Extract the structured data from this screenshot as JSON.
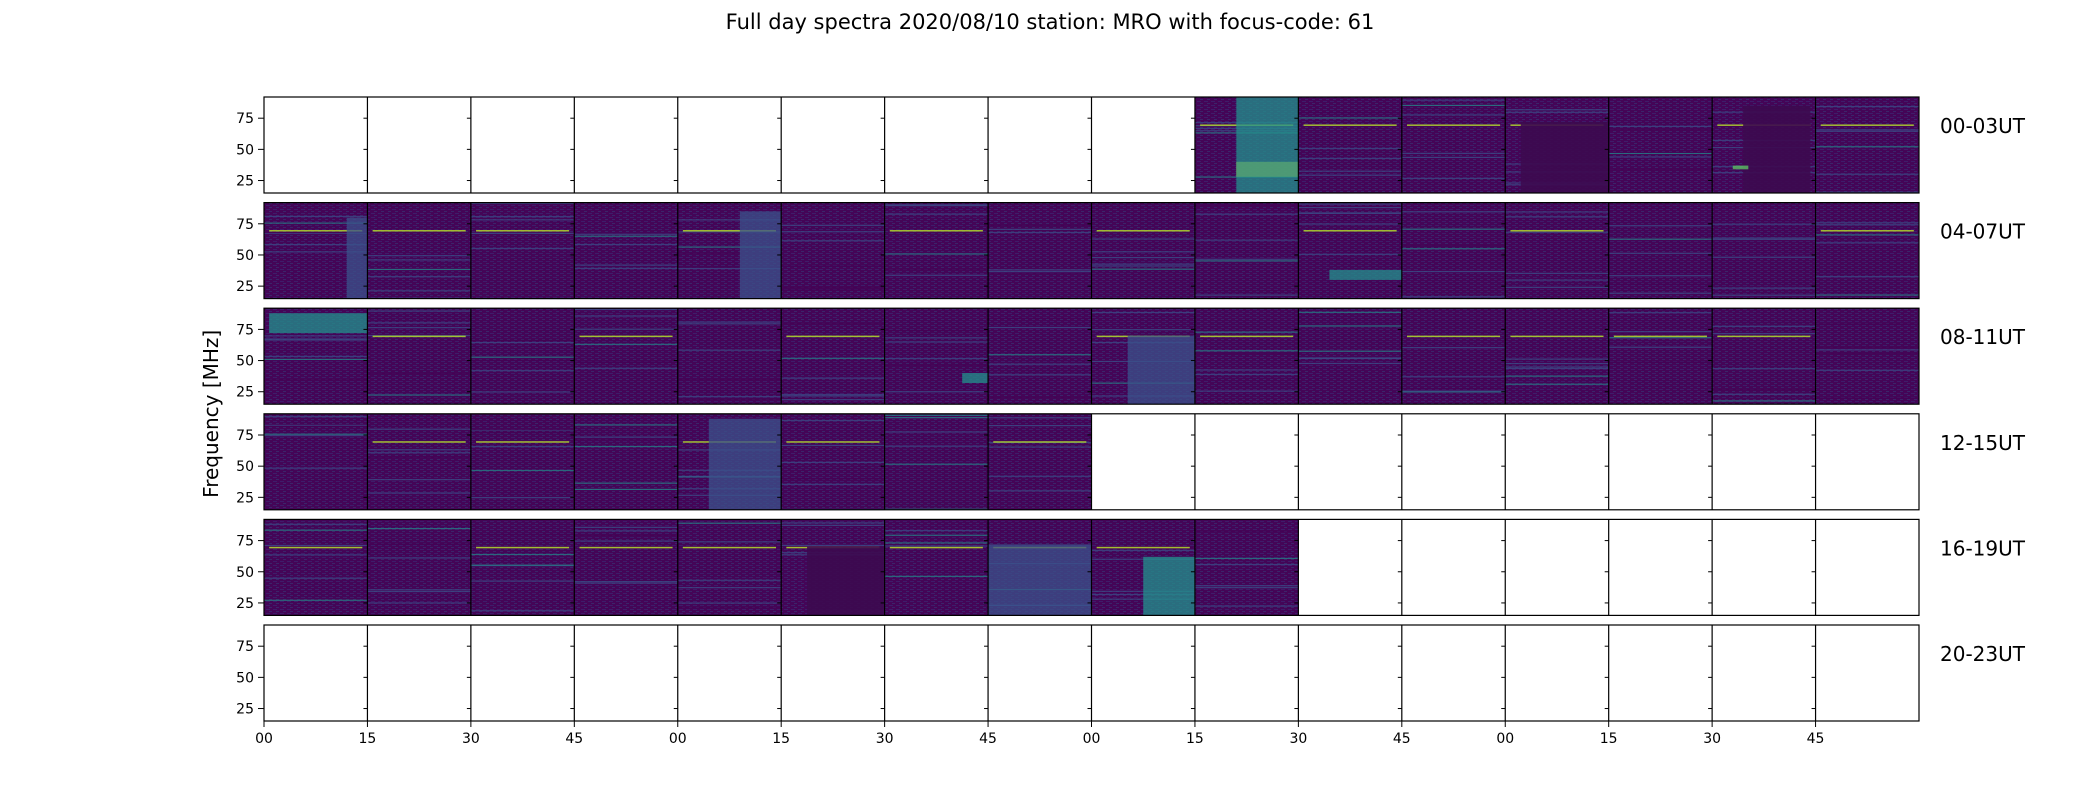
{
  "chart_data": {
    "type": "heatmap",
    "title": "Full day spectra 2020/08/10 station: MRO with focus-code: 61",
    "xlabel": "",
    "ylabel": "Frequency [MHz]",
    "ylim": [
      15,
      92
    ],
    "y_ticks": [
      25,
      50,
      75
    ],
    "x_tick_labels": [
      "00",
      "15",
      "30",
      "45",
      "00",
      "15",
      "30",
      "45",
      "00",
      "15",
      "30",
      "45",
      "00",
      "15",
      "30",
      "45"
    ],
    "row_labels": [
      "00-03UT",
      "04-07UT",
      "08-11UT",
      "12-15UT",
      "16-19UT",
      "20-23UT"
    ],
    "panels_per_row": 16,
    "panel_duration_minutes": 15,
    "colormap": [
      "#440154",
      "#3b528b",
      "#21918c",
      "#5ec962",
      "#fde725"
    ],
    "rows": [
      {
        "label": "00-03UT",
        "panels": [
          0,
          0,
          0,
          0,
          0,
          0,
          0,
          0,
          0,
          1,
          1,
          1,
          1,
          1,
          1,
          1
        ],
        "features": [
          {
            "panel": 9,
            "f_min": 28,
            "f_max": 40,
            "t_start": 0.4,
            "t_end": 1.0,
            "level": 1.0
          },
          {
            "panel": 9,
            "f_min": 15,
            "f_max": 92,
            "t_start": 0.4,
            "t_end": 1.0,
            "level": 0.45
          },
          {
            "panel": 12,
            "f_min": 15,
            "f_max": 72,
            "t_start": 0.15,
            "t_end": 1.0,
            "level": -1
          },
          {
            "panel": 14,
            "f_min": 15,
            "f_max": 85,
            "t_start": 0.3,
            "t_end": 0.95,
            "level": -1
          },
          {
            "panel": 14,
            "f_min": 34,
            "f_max": 37,
            "t_start": 0.2,
            "t_end": 0.35,
            "level": 0.8
          }
        ]
      },
      {
        "label": "04-07UT",
        "panels": [
          1,
          1,
          1,
          1,
          1,
          1,
          1,
          1,
          1,
          1,
          1,
          1,
          1,
          1,
          1,
          1
        ],
        "features": [
          {
            "panel": 4,
            "f_min": 15,
            "f_max": 85,
            "t_start": 0.6,
            "t_end": 1.0,
            "level": 0.35
          },
          {
            "panel": 0,
            "f_min": 15,
            "f_max": 80,
            "t_start": 0.8,
            "t_end": 1.0,
            "level": 0.3
          },
          {
            "panel": 10,
            "f_min": 30,
            "f_max": 38,
            "t_start": 0.3,
            "t_end": 1.0,
            "level": 0.5
          }
        ]
      },
      {
        "label": "08-11UT",
        "panels": [
          1,
          1,
          1,
          1,
          1,
          1,
          1,
          1,
          1,
          1,
          1,
          1,
          1,
          1,
          1,
          1
        ],
        "features": [
          {
            "panel": 0,
            "f_min": 72,
            "f_max": 88,
            "t_start": 0.05,
            "t_end": 1.0,
            "level": 0.45
          },
          {
            "panel": 6,
            "f_min": 32,
            "f_max": 40,
            "t_start": 0.75,
            "t_end": 1.0,
            "level": 0.6
          },
          {
            "panel": 8,
            "f_min": 15,
            "f_max": 70,
            "t_start": 0.35,
            "t_end": 1.0,
            "level": 0.3
          }
        ]
      },
      {
        "label": "12-15UT",
        "panels": [
          1,
          1,
          1,
          1,
          1,
          1,
          1,
          1,
          0,
          0,
          0,
          0,
          0,
          0,
          0,
          0
        ],
        "features": [
          {
            "panel": 4,
            "f_min": 15,
            "f_max": 88,
            "t_start": 0.3,
            "t_end": 1.0,
            "level": 0.3
          }
        ]
      },
      {
        "label": "16-19UT",
        "panels": [
          1,
          1,
          1,
          1,
          1,
          1,
          1,
          1,
          1,
          1,
          0,
          0,
          0,
          0,
          0,
          0
        ],
        "features": [
          {
            "panel": 7,
            "f_min": 15,
            "f_max": 72,
            "t_start": 0.0,
            "t_end": 1.0,
            "level": 0.35
          },
          {
            "panel": 8,
            "f_min": 15,
            "f_max": 62,
            "t_start": 0.5,
            "t_end": 1.0,
            "level": 0.5
          },
          {
            "panel": 5,
            "f_min": 15,
            "f_max": 70,
            "t_start": 0.25,
            "t_end": 1.0,
            "level": -1
          }
        ]
      },
      {
        "label": "20-23UT",
        "panels": [
          0,
          0,
          0,
          0,
          0,
          0,
          0,
          0,
          0,
          0,
          0,
          0,
          0,
          0,
          0,
          0
        ],
        "features": []
      }
    ]
  }
}
